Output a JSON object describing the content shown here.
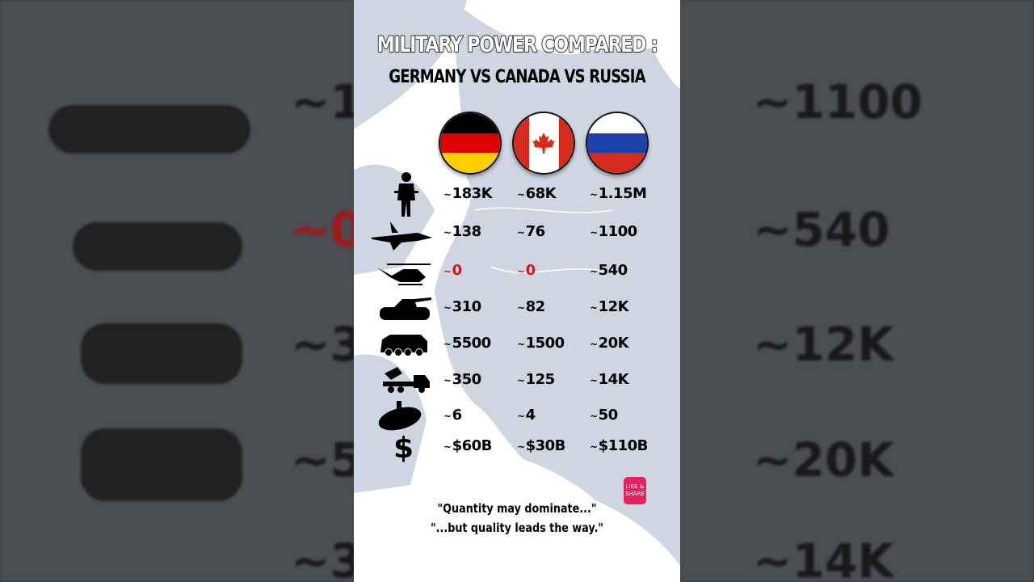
{
  "header": {
    "title": "MILITARY POWER COMPARED :",
    "subtitle": "GERMANY VS CANADA VS RUSSIA"
  },
  "countries": [
    {
      "name": "Germany",
      "flag_colors": [
        "#000000",
        "#dd0000",
        "#ffce00"
      ]
    },
    {
      "name": "Canada",
      "flag_colors": [
        "#d52b1e",
        "#ffffff",
        "#d52b1e"
      ]
    },
    {
      "name": "Russia",
      "flag_colors": [
        "#ffffff",
        "#1c3fa8",
        "#d52b1e"
      ]
    }
  ],
  "tilde": "~",
  "rows": [
    {
      "icon": "soldier-icon",
      "values": [
        "183K",
        "68K",
        "1.15M"
      ]
    },
    {
      "icon": "fighter-jet-icon",
      "values": [
        "138",
        "76",
        "1100"
      ]
    },
    {
      "icon": "helicopter-icon",
      "values": [
        "0",
        "0",
        "540"
      ],
      "highlight": [
        "#e0101a",
        "#e0101a",
        null
      ]
    },
    {
      "icon": "tank-icon",
      "values": [
        "310",
        "82",
        "12K"
      ]
    },
    {
      "icon": "armored-vehicle-icon",
      "values": [
        "5500",
        "1500",
        "20K"
      ]
    },
    {
      "icon": "rocket-launcher-icon",
      "values": [
        "350",
        "125",
        "14K"
      ]
    },
    {
      "icon": "submarine-icon",
      "values": [
        "6",
        "4",
        "50"
      ]
    },
    {
      "icon": "dollar-icon",
      "symbol": "$",
      "values": [
        "$60B",
        "$30B",
        "$110B"
      ]
    }
  ],
  "quotes": [
    "\"Quantity may dominate...\"",
    "\"...but quality leads the way.\""
  ],
  "badge": {
    "line1": "LIKE &",
    "line2": "SHARE"
  },
  "colors": {
    "map_land": "#ffffff",
    "map_sea": "#cfd6e1",
    "zero_value": "#e0101a"
  }
}
